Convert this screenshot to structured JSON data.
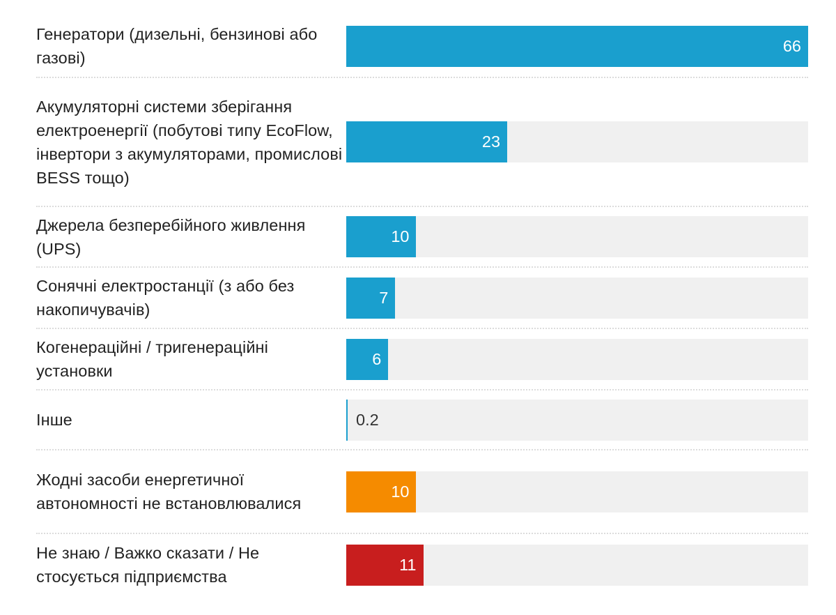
{
  "chart_data": {
    "type": "bar",
    "orientation": "horizontal",
    "categories": [
      "Генератори (дизельні, бензинові або газові)",
      "Акумуляторні системи зберігання електроенергії (побутові типу EcoFlow, інвертори з акумуляторами, промислові BESS тощо)",
      "Джерела безперебійного живлення (UPS)",
      "Сонячні електростанції (з або без накопичувачів)",
      "Когенераційні / тригенераційні установки",
      "Інше",
      "Жодні засоби енергетичної автономності не встановлювалися",
      "Не знаю / Важко сказати / Не стосується підприємства"
    ],
    "values": [
      66,
      23,
      10,
      7,
      6,
      0.2,
      10,
      11
    ],
    "value_labels": [
      "66",
      "23",
      "10",
      "7",
      "6",
      "0.2",
      "10",
      "11"
    ],
    "colors": [
      "#1a9fce",
      "#1a9fce",
      "#1a9fce",
      "#1a9fce",
      "#1a9fce",
      "#1a9fce",
      "#f58b00",
      "#c81e1e"
    ],
    "xlim": [
      0,
      66
    ],
    "track_color": "#f0f0f0",
    "grid": false,
    "legend": "none"
  }
}
